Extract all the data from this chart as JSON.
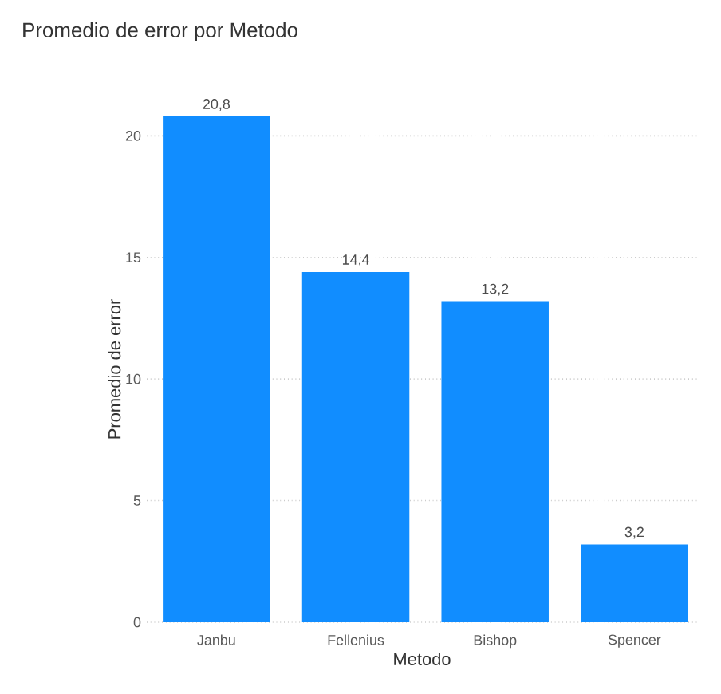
{
  "chart_data": {
    "type": "bar",
    "title": "Promedio de error por Metodo",
    "xlabel": "Metodo",
    "ylabel": "Promedio de error",
    "categories": [
      "Janbu",
      "Fellenius",
      "Bishop",
      "Spencer"
    ],
    "values": [
      20.8,
      14.4,
      13.2,
      3.2
    ],
    "value_labels": [
      "20,8",
      "14,4",
      "13,2",
      "3,2"
    ],
    "color": "#118dff",
    "ylim": [
      0,
      20.8
    ],
    "yticks": [
      0,
      5,
      10,
      15,
      20
    ],
    "grid": "y"
  }
}
